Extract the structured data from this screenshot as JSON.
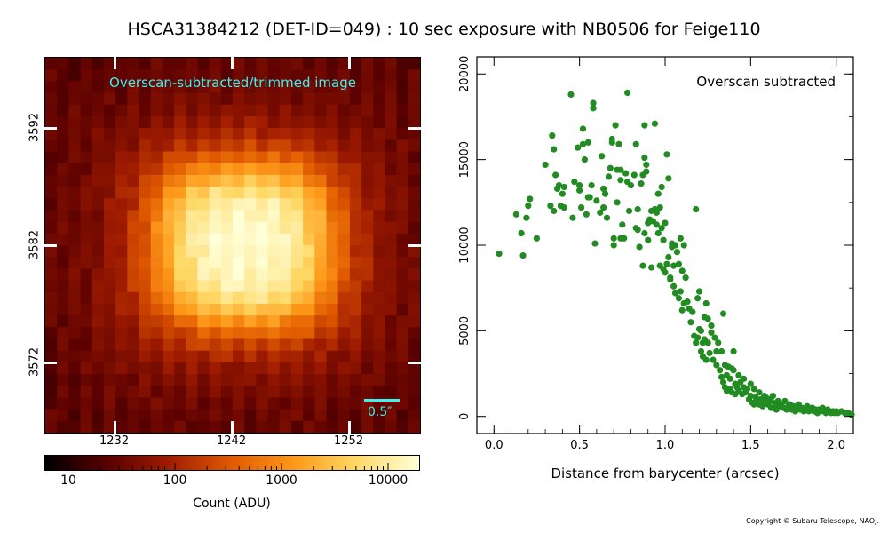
{
  "title": "HSCA31384212 (DET-ID=049) :  10 sec exposure with NB0506 for Feige110",
  "copyright": "Copyright © Subaru Telescope, NAOJ.",
  "image_panel": {
    "label": "Overscan-subtracted/trimmed image",
    "scalebar_label": "0.5″",
    "x_ticks": [
      "1232",
      "1242",
      "1252"
    ],
    "y_ticks": [
      "3592",
      "3582",
      "3572"
    ],
    "colorbar_ticks": [
      "10",
      "100",
      "1000",
      "10000"
    ],
    "colorbar_label": "Count (ADU)",
    "colormap": [
      "#000000",
      "#5a0000",
      "#a01c00",
      "#e05a00",
      "#ff9a1a",
      "#ffd865",
      "#ffffd8"
    ]
  },
  "chart_data": {
    "type": "scatter",
    "title": "",
    "annotation": "Overscan subtracted",
    "xlabel": "Distance from barycenter (arcsec)",
    "ylabel": "",
    "xlim": [
      -0.1,
      2.1
    ],
    "ylim": [
      -1000,
      21000
    ],
    "x_ticks": [
      0.0,
      0.5,
      1.0,
      1.5,
      2.0
    ],
    "x_tick_labels": [
      "0.0",
      "0.5",
      "1.0",
      "1.5",
      "2.0"
    ],
    "y_ticks": [
      0,
      5000,
      10000,
      15000,
      20000
    ],
    "y_tick_labels": [
      "0",
      "5000",
      "10000",
      "15000",
      "20000"
    ],
    "grid": false,
    "color": "#228b22",
    "points": [
      [
        0.03,
        9500
      ],
      [
        0.13,
        11800
      ],
      [
        0.16,
        10700
      ],
      [
        0.17,
        9400
      ],
      [
        0.19,
        11600
      ],
      [
        0.2,
        12300
      ],
      [
        0.21,
        12700
      ],
      [
        0.25,
        10400
      ],
      [
        0.3,
        14700
      ],
      [
        0.33,
        12300
      ],
      [
        0.34,
        16400
      ],
      [
        0.35,
        12000
      ],
      [
        0.35,
        15600
      ],
      [
        0.36,
        14100
      ],
      [
        0.37,
        13300
      ],
      [
        0.38,
        13500
      ],
      [
        0.39,
        12300
      ],
      [
        0.4,
        13000
      ],
      [
        0.41,
        13400
      ],
      [
        0.41,
        12200
      ],
      [
        0.45,
        18800
      ],
      [
        0.46,
        11600
      ],
      [
        0.47,
        13700
      ],
      [
        0.49,
        15700
      ],
      [
        0.5,
        13200
      ],
      [
        0.5,
        13500
      ],
      [
        0.51,
        12200
      ],
      [
        0.52,
        16800
      ],
      [
        0.52,
        15900
      ],
      [
        0.53,
        15000
      ],
      [
        0.54,
        11800
      ],
      [
        0.55,
        12800
      ],
      [
        0.55,
        16000
      ],
      [
        0.56,
        12800
      ],
      [
        0.57,
        13500
      ],
      [
        0.58,
        18000
      ],
      [
        0.58,
        18300
      ],
      [
        0.59,
        10100
      ],
      [
        0.6,
        12600
      ],
      [
        0.62,
        11900
      ],
      [
        0.63,
        15200
      ],
      [
        0.64,
        13300
      ],
      [
        0.64,
        12200
      ],
      [
        0.65,
        13000
      ],
      [
        0.66,
        11600
      ],
      [
        0.67,
        14000
      ],
      [
        0.68,
        14500
      ],
      [
        0.69,
        16200
      ],
      [
        0.69,
        16000
      ],
      [
        0.7,
        10000
      ],
      [
        0.7,
        10400
      ],
      [
        0.71,
        17000
      ],
      [
        0.72,
        12500
      ],
      [
        0.72,
        14400
      ],
      [
        0.73,
        15900
      ],
      [
        0.74,
        13800
      ],
      [
        0.74,
        10400
      ],
      [
        0.74,
        14400
      ],
      [
        0.75,
        11200
      ],
      [
        0.76,
        10400
      ],
      [
        0.77,
        14200
      ],
      [
        0.78,
        18900
      ],
      [
        0.78,
        13700
      ],
      [
        0.79,
        12000
      ],
      [
        0.8,
        13500
      ],
      [
        0.82,
        14100
      ],
      [
        0.83,
        15900
      ],
      [
        0.83,
        11000
      ],
      [
        0.84,
        12100
      ],
      [
        0.84,
        10900
      ],
      [
        0.85,
        9900
      ],
      [
        0.86,
        13600
      ],
      [
        0.87,
        8800
      ],
      [
        0.87,
        14100
      ],
      [
        0.88,
        17000
      ],
      [
        0.88,
        10700
      ],
      [
        0.88,
        15100
      ],
      [
        0.89,
        14300
      ],
      [
        0.89,
        14700
      ],
      [
        0.9,
        11300
      ],
      [
        0.9,
        10300
      ],
      [
        0.91,
        11500
      ],
      [
        0.92,
        8700
      ],
      [
        0.92,
        12000
      ],
      [
        0.93,
        11400
      ],
      [
        0.94,
        17100
      ],
      [
        0.94,
        12100
      ],
      [
        0.95,
        11900
      ],
      [
        0.95,
        11200
      ],
      [
        0.96,
        10700
      ],
      [
        0.96,
        13000
      ],
      [
        0.97,
        8800
      ],
      [
        0.97,
        12200
      ],
      [
        0.98,
        13400
      ],
      [
        0.98,
        11000
      ],
      [
        0.99,
        8600
      ],
      [
        0.99,
        10300
      ],
      [
        1.0,
        11300
      ],
      [
        1.0,
        8400
      ],
      [
        1.01,
        15300
      ],
      [
        1.01,
        8900
      ],
      [
        1.02,
        9300
      ],
      [
        1.02,
        13900
      ],
      [
        1.03,
        8100
      ],
      [
        1.03,
        8000
      ],
      [
        1.04,
        10100
      ],
      [
        1.04,
        9900
      ],
      [
        1.05,
        7600
      ],
      [
        1.05,
        8800
      ],
      [
        1.06,
        7200
      ],
      [
        1.06,
        10000
      ],
      [
        1.07,
        9600
      ],
      [
        1.08,
        6900
      ],
      [
        1.08,
        8900
      ],
      [
        1.09,
        10400
      ],
      [
        1.09,
        7300
      ],
      [
        1.1,
        8500
      ],
      [
        1.1,
        6200
      ],
      [
        1.11,
        10000
      ],
      [
        1.11,
        6600
      ],
      [
        1.12,
        8100
      ],
      [
        1.13,
        6700
      ],
      [
        1.14,
        6300
      ],
      [
        1.15,
        5500
      ],
      [
        1.16,
        6100
      ],
      [
        1.17,
        4700
      ],
      [
        1.18,
        12100
      ],
      [
        1.18,
        4300
      ],
      [
        1.19,
        6900
      ],
      [
        1.19,
        4600
      ],
      [
        1.2,
        5100
      ],
      [
        1.2,
        7300
      ],
      [
        1.21,
        3800
      ],
      [
        1.21,
        5000
      ],
      [
        1.22,
        4300
      ],
      [
        1.22,
        3500
      ],
      [
        1.23,
        5800
      ],
      [
        1.23,
        4500
      ],
      [
        1.24,
        3300
      ],
      [
        1.24,
        6600
      ],
      [
        1.25,
        4300
      ],
      [
        1.25,
        5700
      ],
      [
        1.26,
        3700
      ],
      [
        1.27,
        4900
      ],
      [
        1.27,
        5300
      ],
      [
        1.28,
        3300
      ],
      [
        1.29,
        4600
      ],
      [
        1.3,
        3000
      ],
      [
        1.3,
        3800
      ],
      [
        1.31,
        4300
      ],
      [
        1.32,
        2700
      ],
      [
        1.33,
        2300
      ],
      [
        1.33,
        3800
      ],
      [
        1.34,
        6000
      ],
      [
        1.34,
        2000
      ],
      [
        1.35,
        1700
      ],
      [
        1.35,
        3000
      ],
      [
        1.36,
        2400
      ],
      [
        1.36,
        1500
      ],
      [
        1.37,
        2900
      ],
      [
        1.38,
        2200
      ],
      [
        1.38,
        1600
      ],
      [
        1.39,
        2800
      ],
      [
        1.39,
        1400
      ],
      [
        1.4,
        2700
      ],
      [
        1.4,
        3800
      ],
      [
        1.41,
        1900
      ],
      [
        1.41,
        1300
      ],
      [
        1.42,
        1700
      ],
      [
        1.43,
        2400
      ],
      [
        1.43,
        1500
      ],
      [
        1.44,
        2000
      ],
      [
        1.45,
        1300
      ],
      [
        1.46,
        1700
      ],
      [
        1.46,
        2200
      ],
      [
        1.47,
        1400
      ],
      [
        1.48,
        1600
      ],
      [
        1.49,
        1000
      ],
      [
        1.5,
        1900
      ],
      [
        1.5,
        1200
      ],
      [
        1.51,
        800
      ],
      [
        1.52,
        1600
      ],
      [
        1.52,
        700
      ],
      [
        1.53,
        1100
      ],
      [
        1.54,
        900
      ],
      [
        1.55,
        1400
      ],
      [
        1.55,
        700
      ],
      [
        1.56,
        1000
      ],
      [
        1.57,
        600
      ],
      [
        1.58,
        1200
      ],
      [
        1.58,
        800
      ],
      [
        1.59,
        1100
      ],
      [
        1.6,
        700
      ],
      [
        1.61,
        1000
      ],
      [
        1.62,
        500
      ],
      [
        1.62,
        900
      ],
      [
        1.63,
        1200
      ],
      [
        1.64,
        600
      ],
      [
        1.65,
        800
      ],
      [
        1.65,
        400
      ],
      [
        1.66,
        900
      ],
      [
        1.67,
        600
      ],
      [
        1.68,
        700
      ],
      [
        1.69,
        500
      ],
      [
        1.7,
        900
      ],
      [
        1.71,
        400
      ],
      [
        1.72,
        600
      ],
      [
        1.73,
        700
      ],
      [
        1.74,
        400
      ],
      [
        1.75,
        600
      ],
      [
        1.76,
        300
      ],
      [
        1.77,
        500
      ],
      [
        1.78,
        700
      ],
      [
        1.79,
        400
      ],
      [
        1.8,
        500
      ],
      [
        1.81,
        300
      ],
      [
        1.82,
        400
      ],
      [
        1.83,
        600
      ],
      [
        1.84,
        300
      ],
      [
        1.85,
        400
      ],
      [
        1.86,
        500
      ],
      [
        1.87,
        300
      ],
      [
        1.88,
        400
      ],
      [
        1.89,
        200
      ],
      [
        1.9,
        400
      ],
      [
        1.91,
        300
      ],
      [
        1.92,
        500
      ],
      [
        1.93,
        300
      ],
      [
        1.94,
        200
      ],
      [
        1.95,
        400
      ],
      [
        1.96,
        300
      ],
      [
        1.97,
        200
      ],
      [
        1.98,
        300
      ],
      [
        1.99,
        200
      ],
      [
        2.0,
        300
      ],
      [
        2.01,
        200
      ],
      [
        2.03,
        300
      ],
      [
        2.05,
        200
      ],
      [
        2.07,
        200
      ],
      [
        2.09,
        100
      ]
    ]
  }
}
